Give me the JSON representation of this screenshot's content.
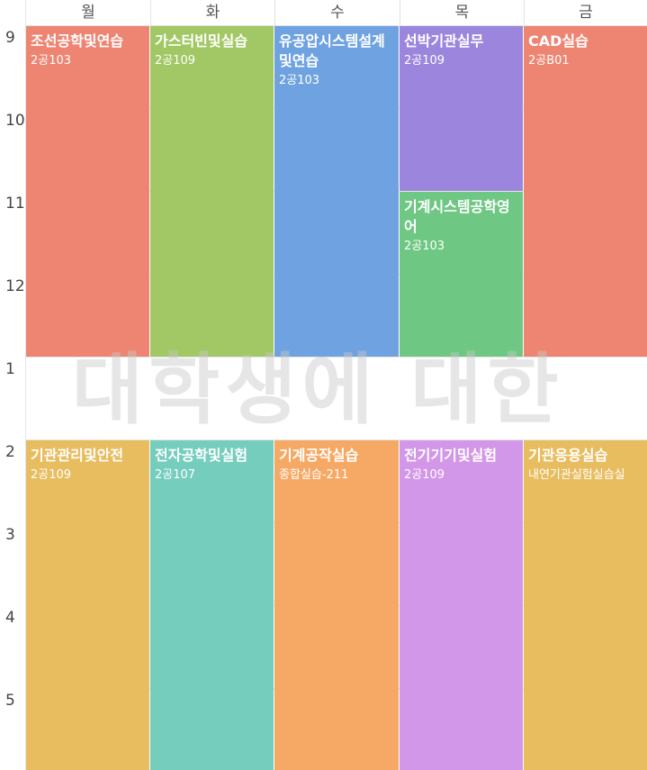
{
  "days": [
    "월",
    "화",
    "수",
    "목",
    "금"
  ],
  "hours": [
    "9",
    "10",
    "11",
    "12",
    "1",
    "2",
    "3",
    "4",
    "5"
  ],
  "watermark": "대학생에 대한",
  "courses": [
    {
      "name": "조선공학및연습",
      "room": "2공103",
      "color": "#ee8572"
    },
    {
      "name": "가스터빈및실습",
      "room": "2공109",
      "color": "#a2c865"
    },
    {
      "name": "유공압시스템설계및연습",
      "room": "2공103",
      "color": "#6fa2e0"
    },
    {
      "name": "선박기관실무",
      "room": "2공109",
      "color": "#9c86dd"
    },
    {
      "name": "기계시스템공학영어",
      "room": "2공103",
      "color": "#6ec782"
    },
    {
      "name": "CAD실습",
      "room": "2공B01",
      "color": "#ee8572"
    },
    {
      "name": "기관관리및안전",
      "room": "2공109",
      "color": "#e8bd60"
    },
    {
      "name": "전자공학및실험",
      "room": "2공107",
      "color": "#75cdbd"
    },
    {
      "name": "기계공작실습",
      "room": "종합실습-211",
      "color": "#f6a965"
    },
    {
      "name": "전기기기및실험",
      "room": "2공109",
      "color": "#d297e8"
    },
    {
      "name": "기관응용실습",
      "room": "내연기관실험실습실",
      "color": "#e8bd60"
    }
  ]
}
